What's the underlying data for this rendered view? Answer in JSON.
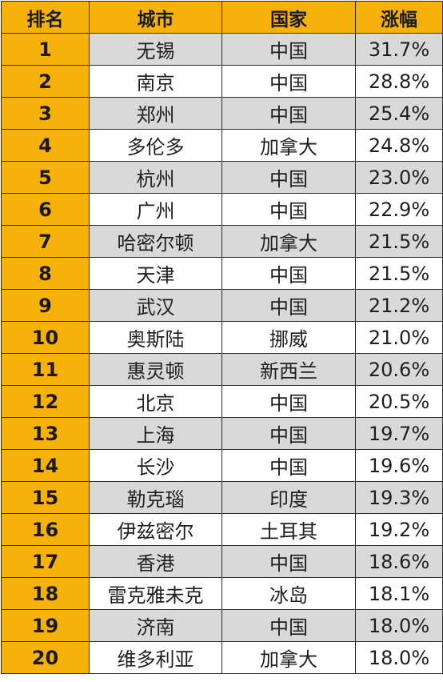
{
  "table": {
    "headers": [
      "排名",
      "城市",
      "国家",
      "涨幅"
    ],
    "rows": [
      {
        "rank": "1",
        "city": "无锡",
        "country": "中国",
        "change": "31.7%"
      },
      {
        "rank": "2",
        "city": "南京",
        "country": "中国",
        "change": "28.8%"
      },
      {
        "rank": "3",
        "city": "郑州",
        "country": "中国",
        "change": "25.4%"
      },
      {
        "rank": "4",
        "city": "多伦多",
        "country": "加拿大",
        "change": "24.8%"
      },
      {
        "rank": "5",
        "city": "杭州",
        "country": "中国",
        "change": "23.0%"
      },
      {
        "rank": "6",
        "city": "广州",
        "country": "中国",
        "change": "22.9%"
      },
      {
        "rank": "7",
        "city": "哈密尔顿",
        "country": "加拿大",
        "change": "21.5%"
      },
      {
        "rank": "8",
        "city": "天津",
        "country": "中国",
        "change": "21.5%"
      },
      {
        "rank": "9",
        "city": "武汉",
        "country": "中国",
        "change": "21.2%"
      },
      {
        "rank": "10",
        "city": "奥斯陆",
        "country": "挪威",
        "change": "21.0%"
      },
      {
        "rank": "11",
        "city": "惠灵顿",
        "country": "新西兰",
        "change": "20.6%"
      },
      {
        "rank": "12",
        "city": "北京",
        "country": "中国",
        "change": "20.5%"
      },
      {
        "rank": "13",
        "city": "上海",
        "country": "中国",
        "change": "19.7%"
      },
      {
        "rank": "14",
        "city": "长沙",
        "country": "中国",
        "change": "19.6%"
      },
      {
        "rank": "15",
        "city": "勒克瑙",
        "country": "印度",
        "change": "19.3%"
      },
      {
        "rank": "16",
        "city": "伊兹密尔",
        "country": "土耳其",
        "change": "19.2%"
      },
      {
        "rank": "17",
        "city": "香港",
        "country": "中国",
        "change": "18.6%"
      },
      {
        "rank": "18",
        "city": "雷克雅未克",
        "country": "冰岛",
        "change": "18.1%"
      },
      {
        "rank": "19",
        "city": "济南",
        "country": "中国",
        "change": "18.0%"
      },
      {
        "rank": "20",
        "city": "维多利亚",
        "country": "加拿大",
        "change": "18.0%"
      }
    ]
  },
  "colors": {
    "header_bg": "#f6b10a",
    "shaded_row_bg": "#d9d9d9",
    "border": "#2b2b2b"
  }
}
